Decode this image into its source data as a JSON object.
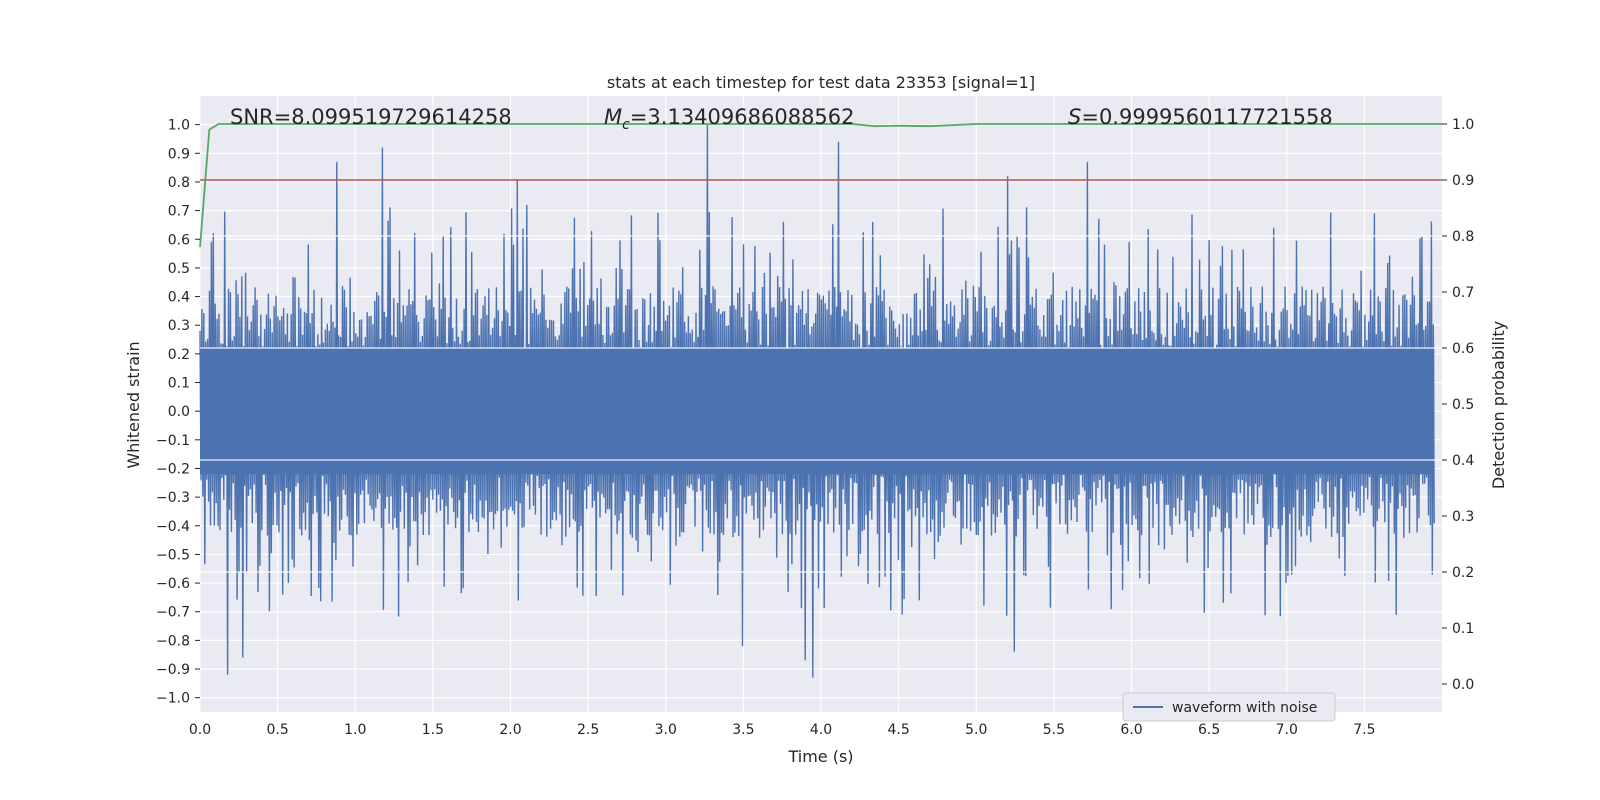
{
  "chart_data": {
    "type": "line",
    "title": "stats at each timestep for test data 23353 [signal=1]",
    "xlabel": "Time (s)",
    "ylabel": "Whitened strain",
    "y2label": "Detection probability",
    "xlim": [
      0.0,
      8.0
    ],
    "ylim": [
      -1.05,
      1.1
    ],
    "y2lim": [
      -0.05,
      1.05
    ],
    "x_ticks": [
      "0.0",
      "0.5",
      "1.0",
      "1.5",
      "2.0",
      "2.5",
      "3.0",
      "3.5",
      "4.0",
      "4.5",
      "5.0",
      "5.5",
      "6.0",
      "6.5",
      "7.0",
      "7.5"
    ],
    "y_ticks": [
      "1.0",
      "0.9",
      "0.8",
      "0.7",
      "0.6",
      "0.5",
      "0.4",
      "0.3",
      "0.2",
      "0.1",
      "0.0",
      "−0.1",
      "−0.2",
      "−0.3",
      "−0.4",
      "−0.5",
      "−0.6",
      "−0.7",
      "−0.8",
      "−0.9",
      "−1.0"
    ],
    "y2_ticks": [
      "1.0",
      "0.9",
      "0.8",
      "0.7",
      "0.6",
      "0.5",
      "0.4",
      "0.3",
      "0.2",
      "0.1",
      "0.0"
    ],
    "grid": true,
    "legend_position": "lower-right",
    "annotations": {
      "snr": "SNR=8.099519729614258",
      "mc_symbol": "M",
      "mc_sub": "c",
      "mc_value": "=3.13409686088562",
      "s_symbol": "S",
      "s_value": "=0.9999560117721558"
    },
    "series": [
      {
        "name": "waveform with noise",
        "axis": "left",
        "color": "#4c72b0",
        "kind": "noise",
        "band_upper": 0.4,
        "band_lower": -0.4,
        "peaks": [
          {
            "x": 0.88,
            "y": 0.87
          },
          {
            "x": 1.18,
            "y": 0.92
          },
          {
            "x": 2.05,
            "y": 0.81
          },
          {
            "x": 3.27,
            "y": 1.0
          },
          {
            "x": 4.11,
            "y": 0.94
          },
          {
            "x": 5.2,
            "y": 0.82
          },
          {
            "x": 5.72,
            "y": 0.87
          },
          {
            "x": 0.18,
            "y": -0.92
          },
          {
            "x": 0.27,
            "y": -0.86
          },
          {
            "x": 3.9,
            "y": -0.87
          },
          {
            "x": 3.95,
            "y": -0.93
          },
          {
            "x": 3.5,
            "y": -0.82
          },
          {
            "x": 5.25,
            "y": -0.84
          }
        ]
      },
      {
        "axis": "right",
        "color": "#dd8452",
        "kind": "probability",
        "x": [
          0.0,
          0.06,
          0.12,
          0.2,
          1.0,
          2.0,
          3.0,
          4.0,
          4.2,
          4.35,
          4.5,
          4.7,
          5.0,
          6.0,
          7.0,
          8.0
        ],
        "y": [
          0.78,
          0.99,
          1.0,
          1.0,
          1.0,
          1.0,
          1.0,
          1.0,
          1.0,
          0.996,
          0.997,
          0.996,
          1.0,
          1.0,
          1.0,
          1.0
        ]
      },
      {
        "axis": "right",
        "color": "#c44e52",
        "kind": "threshold",
        "y": 0.9
      }
    ]
  },
  "colors": {
    "plot_bg": "#eaeaf2",
    "grid": "#ffffff",
    "waveform": "#4c72b0",
    "probability": "#55a868",
    "threshold": "#c44e52"
  }
}
